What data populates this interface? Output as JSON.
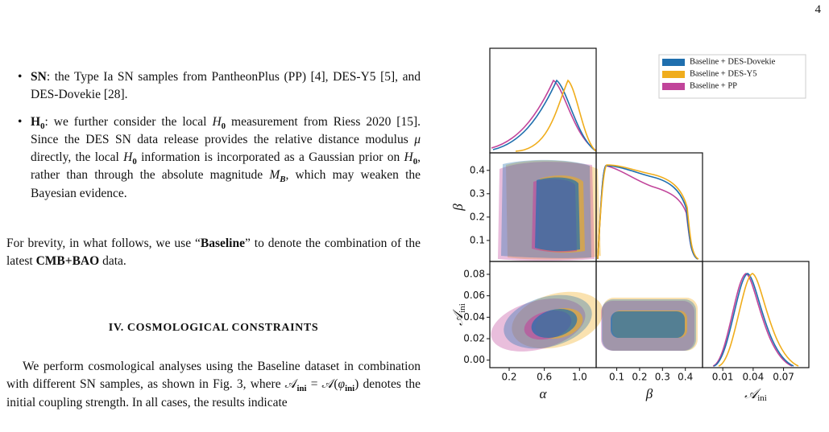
{
  "page_number": "4",
  "bullets": [
    [
      {
        "text": "SN",
        "style": "b"
      },
      {
        "text": ": the Type Ia SN samples from PantheonPlus (PP) [4], DES-Y5 [5], and DES-Dovekie [28]."
      }
    ],
    [
      {
        "text": "H",
        "style": "b"
      },
      {
        "text": "0",
        "style": "bsub"
      },
      {
        "text": ": we further consider the local "
      },
      {
        "text": "H",
        "style": "i"
      },
      {
        "text": "0",
        "style": "sub"
      },
      {
        "text": " measurement from Riess 2020 [15]. Since the DES SN data release provides the relative distance modulus "
      },
      {
        "text": "μ",
        "style": "i"
      },
      {
        "text": " directly, the local "
      },
      {
        "text": "H",
        "style": "i"
      },
      {
        "text": "0",
        "style": "sub"
      },
      {
        "text": " information is incorporated as a Gaussian prior on "
      },
      {
        "text": "H",
        "style": "i"
      },
      {
        "text": "0",
        "style": "sub"
      },
      {
        "text": ", rather than through the absolute magnitude "
      },
      {
        "text": "M",
        "style": "i"
      },
      {
        "text": "B",
        "style": "isub"
      },
      {
        "text": ", which may weaken the Bayesian evidence."
      }
    ]
  ],
  "paragraph1": [
    {
      "text": "For brevity, in what follows, we use “"
    },
    {
      "text": "Baseline",
      "style": "b"
    },
    {
      "text": "” to denote the combination of the latest "
    },
    {
      "text": "CMB+BAO",
      "style": "b"
    },
    {
      "text": " data."
    }
  ],
  "section_heading": "IV.   COSMOLOGICAL CONSTRAINTS",
  "paragraph2": [
    {
      "text": "We perform cosmological analyses using the Baseline dataset in combination with different SN samples, as shown in Fig. 3, where "
    },
    {
      "text": "𝒜"
    },
    {
      "text": "ini",
      "style": "sub"
    },
    {
      "text": " = 𝒜("
    },
    {
      "text": "φ",
      "style": "i"
    },
    {
      "text": "ini",
      "style": "sub"
    },
    {
      "text": ") denotes the initial coupling strength. In all cases, the results indicate"
    }
  ],
  "figure": {
    "legend": [
      {
        "name": "Baseline + DES-Dovekie",
        "color": "#1f6fae"
      },
      {
        "name": "Baseline + DES-Y5",
        "color": "#f0ad1c"
      },
      {
        "name": "Baseline + PP",
        "color": "#c1449a"
      }
    ],
    "x_axes": [
      {
        "label": "α",
        "lim": [
          -0.02,
          1.19
        ],
        "ticks": [
          0.2,
          0.6,
          {
            "value": 1,
            "label": "1.0"
          }
        ]
      },
      {
        "label": "β",
        "lim": [
          0.01,
          0.475
        ],
        "ticks": [
          0.1,
          0.2,
          0.3,
          0.4
        ]
      },
      {
        "label": "𝒜",
        "label_sub": "ini",
        "lim": [
          -0.01,
          0.095
        ],
        "ticks": [
          0.01,
          0.04,
          0.07
        ]
      }
    ],
    "y_axes": [
      {
        "label": "β",
        "lim": [
          0.01,
          0.475
        ],
        "ticks": [
          0.1,
          0.2,
          0.3,
          0.4
        ]
      },
      {
        "label": "𝒜",
        "label_sub": "ini",
        "lim": [
          -0.007,
          0.092
        ],
        "ticks": [
          {
            "value": 0,
            "label": "0.00"
          },
          0.02,
          0.04,
          0.06,
          0.08
        ]
      }
    ]
  }
}
